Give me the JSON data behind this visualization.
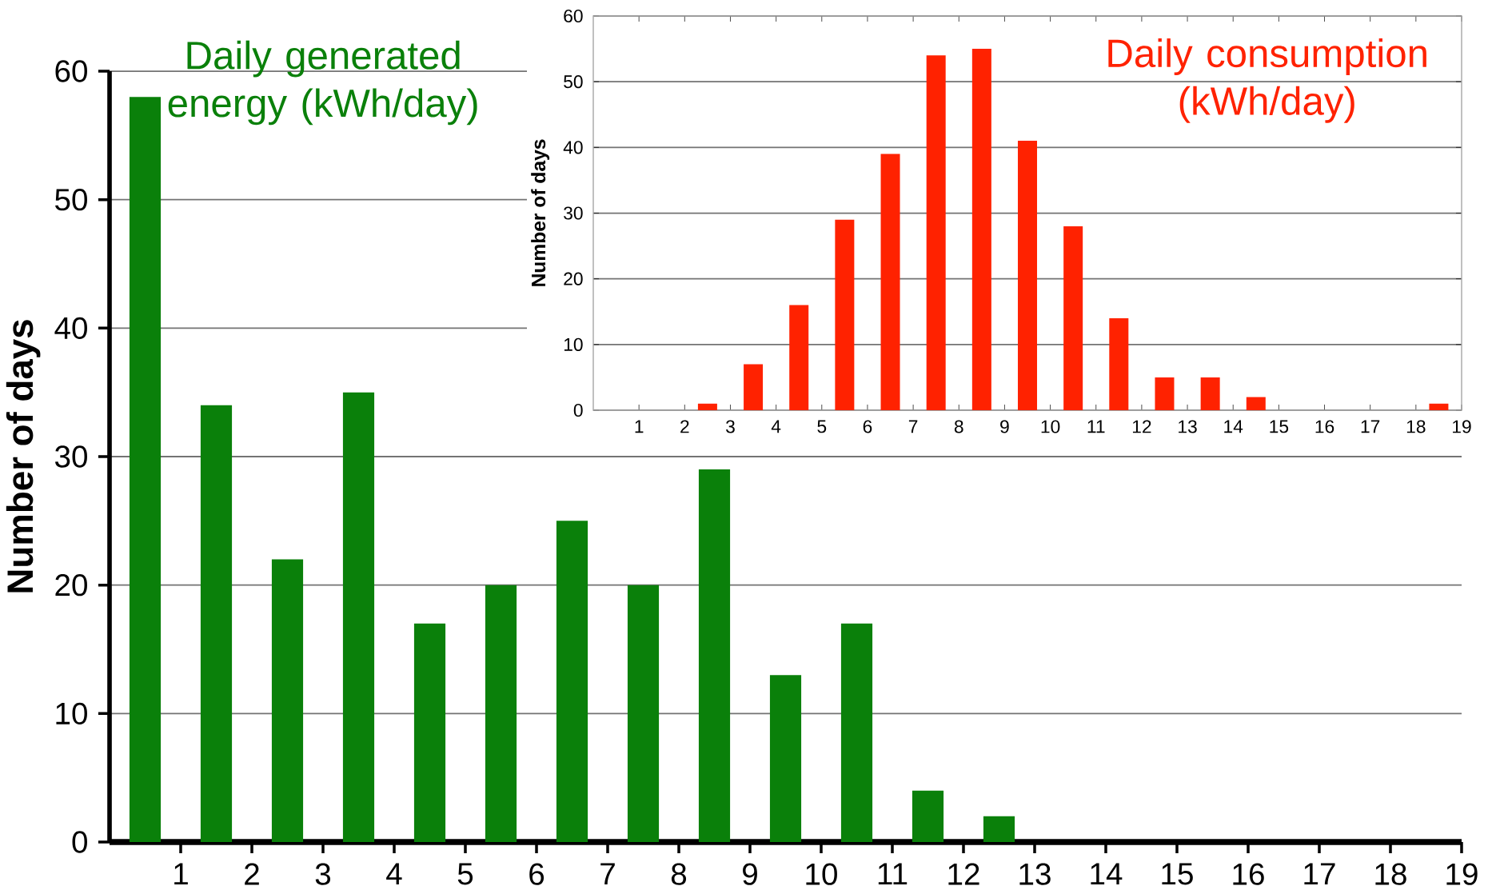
{
  "chart_data": [
    {
      "type": "histogram",
      "title": "Daily generated energy (kWh/day)",
      "ylabel": "Number of days",
      "bins": [
        0,
        1,
        2,
        3,
        4,
        5,
        6,
        7,
        8,
        9,
        10,
        11,
        12,
        13,
        14,
        15,
        16,
        17,
        18,
        19
      ],
      "values": [
        58,
        34,
        22,
        35,
        17,
        20,
        25,
        20,
        29,
        13,
        17,
        4,
        2,
        0,
        0,
        0,
        0,
        0,
        0
      ],
      "color": "#0a800a",
      "xlim": [
        0,
        19
      ],
      "ylim": [
        0,
        60
      ],
      "xticks": [
        1,
        2,
        3,
        4,
        5,
        6,
        7,
        8,
        9,
        10,
        11,
        12,
        13,
        14,
        15,
        16,
        17,
        18,
        19
      ],
      "yticks": [
        0,
        10,
        20,
        30,
        40,
        50,
        60
      ],
      "grid": "y"
    },
    {
      "type": "histogram",
      "title": "Daily consumption (kWh/day)",
      "ylabel": "Number of days",
      "bins": [
        0,
        1,
        2,
        3,
        4,
        5,
        6,
        7,
        8,
        9,
        10,
        11,
        12,
        13,
        14,
        15,
        16,
        17,
        18,
        19
      ],
      "values": [
        0,
        0,
        1,
        7,
        16,
        29,
        39,
        54,
        55,
        41,
        28,
        14,
        5,
        5,
        2,
        0,
        0,
        0,
        1
      ],
      "color": "#ff2200",
      "xlim": [
        0,
        19
      ],
      "ylim": [
        0,
        60
      ],
      "xticks": [
        1,
        2,
        3,
        4,
        5,
        6,
        7,
        8,
        9,
        10,
        11,
        12,
        13,
        14,
        15,
        16,
        17,
        18,
        19
      ],
      "yticks": [
        0,
        10,
        20,
        30,
        40,
        50,
        60
      ],
      "grid": "y"
    }
  ]
}
